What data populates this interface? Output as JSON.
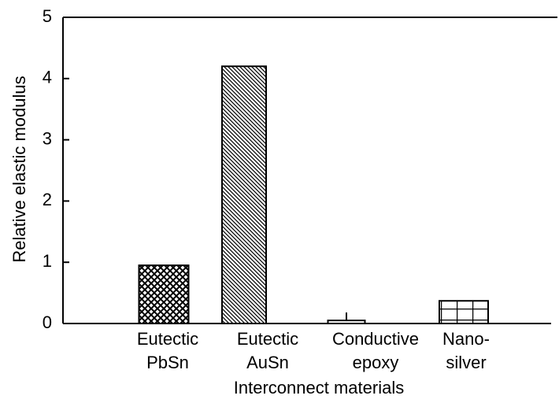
{
  "chart_data": {
    "type": "bar",
    "xlabel": "Interconnect materials",
    "ylabel": "Relative elastic modulus",
    "categories": [
      [
        "Eutectic",
        "PbSn"
      ],
      [
        "Eutectic",
        "AuSn"
      ],
      [
        "Conductive",
        "epoxy"
      ],
      [
        "Nano-",
        "silver"
      ]
    ],
    "values": [
      0.95,
      4.2,
      0.05,
      0.37
    ],
    "errors": [
      null,
      null,
      0.13,
      null
    ],
    "hatch": [
      "crosshatch",
      "diagonal",
      "none",
      "grid"
    ],
    "color": "#000000",
    "ylim": [
      0,
      5
    ],
    "yticks": [
      0,
      1,
      2,
      3,
      4,
      5
    ],
    "grid": false
  }
}
